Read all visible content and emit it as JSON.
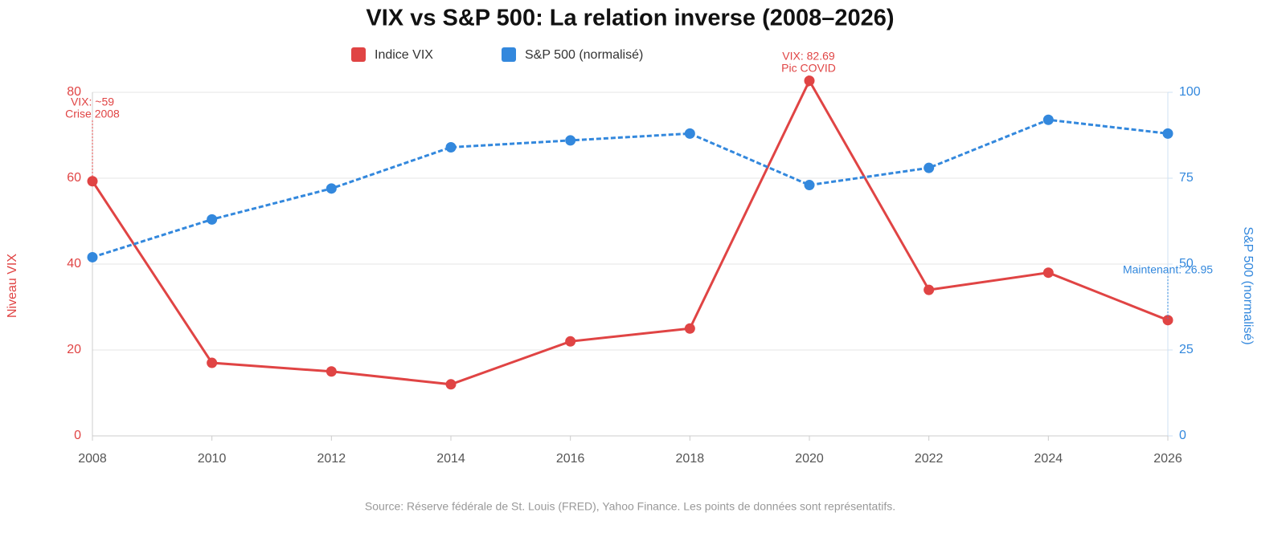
{
  "chart_data": {
    "type": "line",
    "title": "VIX vs S&P 500: La relation inverse (2008–2026)",
    "x": [
      2008,
      2010,
      2012,
      2014,
      2016,
      2018,
      2020,
      2022,
      2024,
      2026
    ],
    "xlim": [
      2008,
      2026
    ],
    "xticks": [
      2008,
      2010,
      2012,
      2014,
      2016,
      2018,
      2020,
      2022,
      2024,
      2026
    ],
    "ylim": [
      0,
      80
    ],
    "yticks": [
      0,
      20,
      40,
      60,
      80
    ],
    "y2lim": [
      0,
      100
    ],
    "y2ticks": [
      0,
      25,
      50,
      75,
      100
    ],
    "ylabel": "Niveau VIX",
    "y2label": "S&P 500 (normalisé)",
    "grid": true,
    "series": [
      {
        "name": "Indice VIX",
        "color": "#e04444",
        "values": [
          59.3,
          17,
          15,
          12,
          22,
          25,
          82.69,
          34,
          38,
          26.95
        ]
      },
      {
        "name": "S&P 500 (normalisé)",
        "color": "#3388dd",
        "axis": "y2",
        "dashed": true,
        "values": [
          52,
          63,
          72,
          84,
          86,
          88,
          73,
          78,
          92,
          88
        ]
      }
    ],
    "annotations": [
      {
        "lines": [
          "VIX: ~59",
          "Crise 2008"
        ]
      },
      {
        "lines": [
          "VIX: 82.69",
          "Pic COVID"
        ]
      },
      {
        "lines": [
          "Maintenant: 26.95"
        ]
      }
    ],
    "source": "Source: Réserve fédérale de St. Louis (FRED), Yahoo Finance. Les points de données sont représentatifs."
  }
}
